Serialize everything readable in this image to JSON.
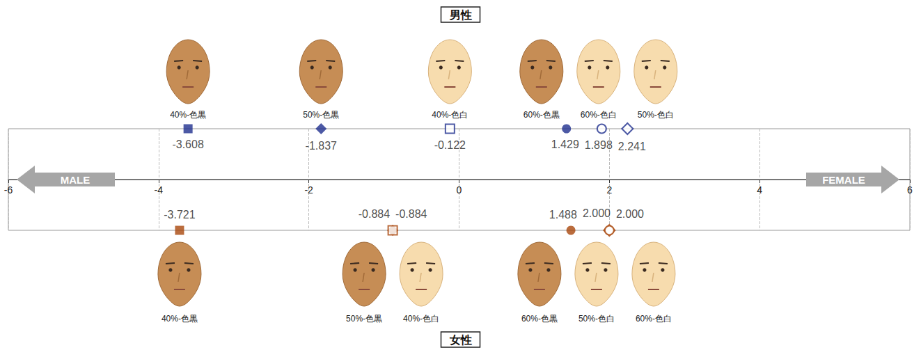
{
  "chart_data": {
    "type": "scatter",
    "xlim": [
      -6,
      6
    ],
    "xticks": [
      -6,
      -4,
      -2,
      0,
      2,
      4,
      6
    ],
    "grid": true,
    "data_labels": true,
    "annotations": [
      "MALE",
      "FEMALE"
    ],
    "panels": [
      {
        "title": "男性",
        "color": "#1f2f8f",
        "categories": [
          "40%-色黒",
          "50%-色黒",
          "40%-色白",
          "60%-色黒",
          "60%-色白",
          "50%-色白"
        ],
        "values": [
          -3.608,
          -1.837,
          -0.122,
          1.429,
          1.898,
          2.241
        ],
        "value_labels": [
          "-3.608",
          "-1.837",
          "-0.122",
          "1.429",
          "1.898",
          "2.241"
        ],
        "markers": [
          "square",
          "diamond",
          "square-open",
          "circle",
          "circle-open",
          "diamond-open"
        ]
      },
      {
        "title": "女性",
        "color": "#a9470d",
        "categories": [
          "40%-色黒",
          "50%-色黒",
          "40%-色白",
          "60%-色黒",
          "50%-色白",
          "60%-色白"
        ],
        "values": [
          -3.721,
          -0.884,
          -0.884,
          1.488,
          2.0,
          2.0
        ],
        "value_labels": [
          "-3.721",
          "-0.884",
          "-0.884",
          "1.488",
          "2.000",
          "2.000"
        ],
        "markers": [
          "square",
          "diamond",
          "square-open",
          "circle",
          "diamond-open",
          "circle-open"
        ]
      }
    ]
  }
}
